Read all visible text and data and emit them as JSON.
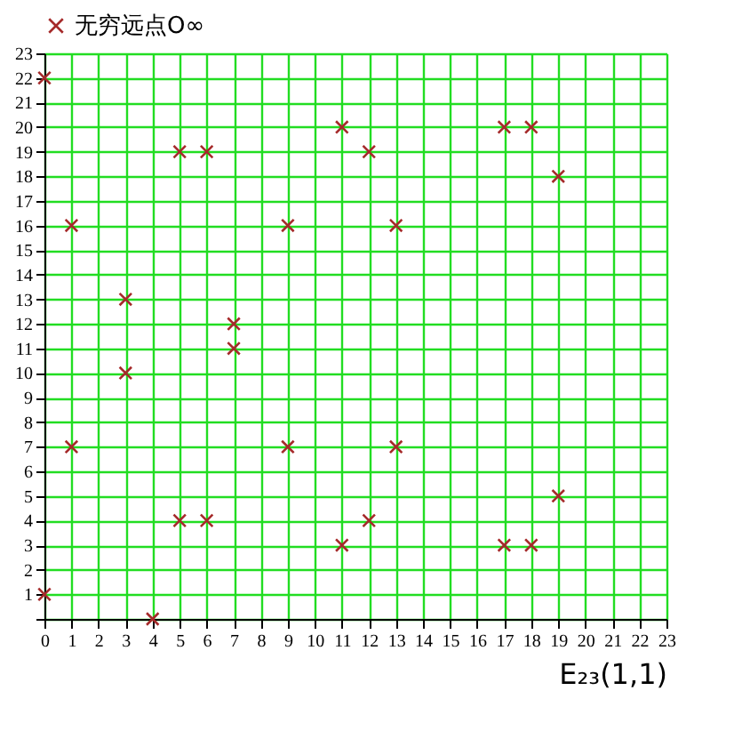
{
  "chart_data": {
    "type": "scatter",
    "xlabel": "E₂₃(1,1)",
    "marker": "cross",
    "grid": true,
    "legend": "top left",
    "series": [
      {
        "name": "无穷远点O∞",
        "color": "#a52a2a",
        "x": [
          0,
          0,
          1,
          1,
          3,
          3,
          4,
          5,
          5,
          6,
          6,
          7,
          7,
          9,
          9,
          11,
          11,
          12,
          12,
          13,
          13,
          17,
          17,
          18,
          18,
          19,
          19
        ],
        "values": [
          1,
          22,
          7,
          16,
          10,
          13,
          0,
          4,
          19,
          4,
          19,
          11,
          12,
          7,
          16,
          3,
          20,
          4,
          19,
          7,
          16,
          3,
          20,
          3,
          20,
          5,
          18
        ]
      }
    ],
    "xlim": [
      0,
      23
    ],
    "xticks": [
      0,
      1,
      2,
      3,
      4,
      5,
      6,
      7,
      8,
      9,
      10,
      11,
      12,
      13,
      14,
      15,
      16,
      17,
      18,
      19,
      20,
      21,
      22,
      23
    ],
    "ylim": [
      0,
      23
    ],
    "yticks": [
      {
        "value": 0,
        "label": null
      },
      1,
      2,
      3,
      4,
      5,
      6,
      7,
      8,
      9,
      10,
      11,
      12,
      13,
      14,
      15,
      16,
      17,
      18,
      19,
      20,
      21,
      22,
      23
    ]
  }
}
